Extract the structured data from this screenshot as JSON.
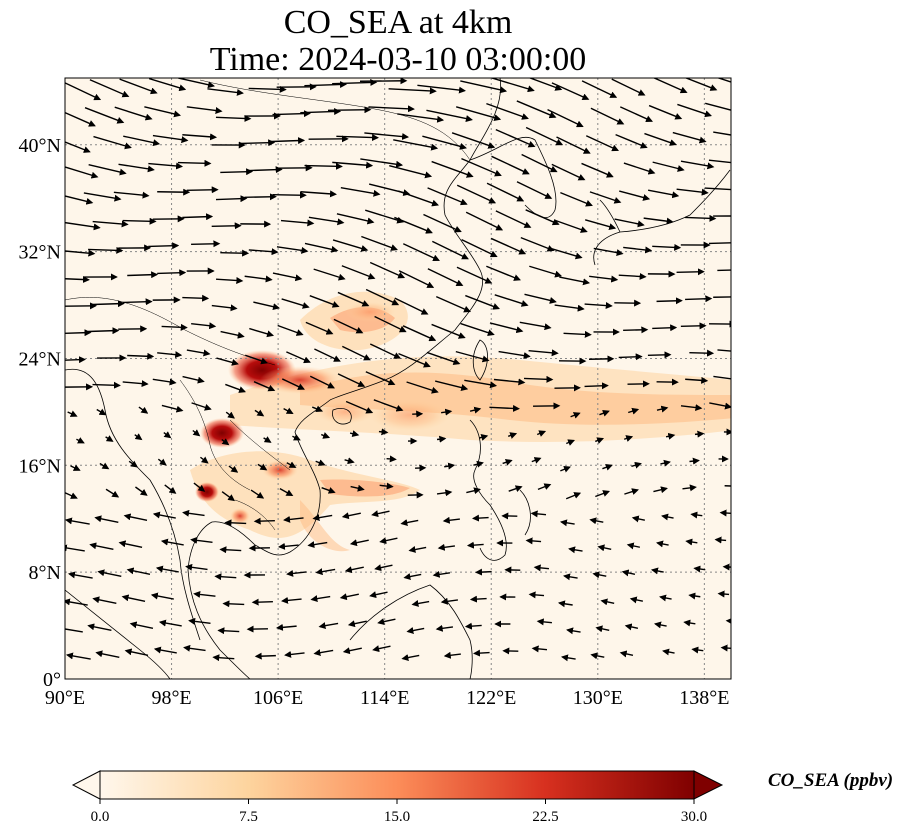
{
  "title_line1": "CO_SEA at 4km",
  "title_line2": "Time: 2024-03-10 03:00:00",
  "map": {
    "type": "filled-contour-map-with-wind-vectors",
    "extent": {
      "lon_min": 90,
      "lon_max": 140,
      "lat_min": 0,
      "lat_max": 45
    },
    "gridlines": "dotted grey",
    "lon_ticks": [
      {
        "value": 90,
        "label": "90°E"
      },
      {
        "value": 98,
        "label": "98°E"
      },
      {
        "value": 106,
        "label": "106°E"
      },
      {
        "value": 114,
        "label": "114°E"
      },
      {
        "value": 122,
        "label": "122°E"
      },
      {
        "value": 130,
        "label": "130°E"
      },
      {
        "value": 138,
        "label": "138°E"
      }
    ],
    "lat_ticks": [
      {
        "value": 0,
        "label": "0°"
      },
      {
        "value": 8,
        "label": "8°N"
      },
      {
        "value": 16,
        "label": "16°N"
      },
      {
        "value": 24,
        "label": "24°N"
      },
      {
        "value": 32,
        "label": "32°N"
      },
      {
        "value": 40,
        "label": "40°N"
      }
    ],
    "plumes": [
      {
        "name": "northern-laos-vietnam-source",
        "lon": 104.5,
        "lat": 23.2,
        "level": 30
      },
      {
        "name": "northern-thailand-source",
        "lon": 101.8,
        "lat": 18.3,
        "level": 28
      },
      {
        "name": "central-thailand-source",
        "lon": 101.0,
        "lat": 14.0,
        "level": 24
      },
      {
        "name": "cambodia-source",
        "lon": 103.0,
        "lat": 12.3,
        "level": 20
      },
      {
        "name": "eastward-transport-band",
        "lon": 125.0,
        "lat": 20.0,
        "level": 10
      }
    ],
    "wind_vectors": "prevailing westerly to north-westerly flow north of 20°N; weak easterly flow over the South China Sea and Gulf of Thailand"
  },
  "colorbar": {
    "colormap": "OrRd",
    "min": 0.0,
    "max": 30.0,
    "extend": "both",
    "ticks": [
      "0.0",
      "7.5",
      "15.0",
      "22.5",
      "30.0"
    ],
    "label": "CO_SEA (ppbv)",
    "colors": [
      "#fff7ec",
      "#fdd49e",
      "#fc8d59",
      "#d7301f",
      "#7f0000"
    ]
  }
}
